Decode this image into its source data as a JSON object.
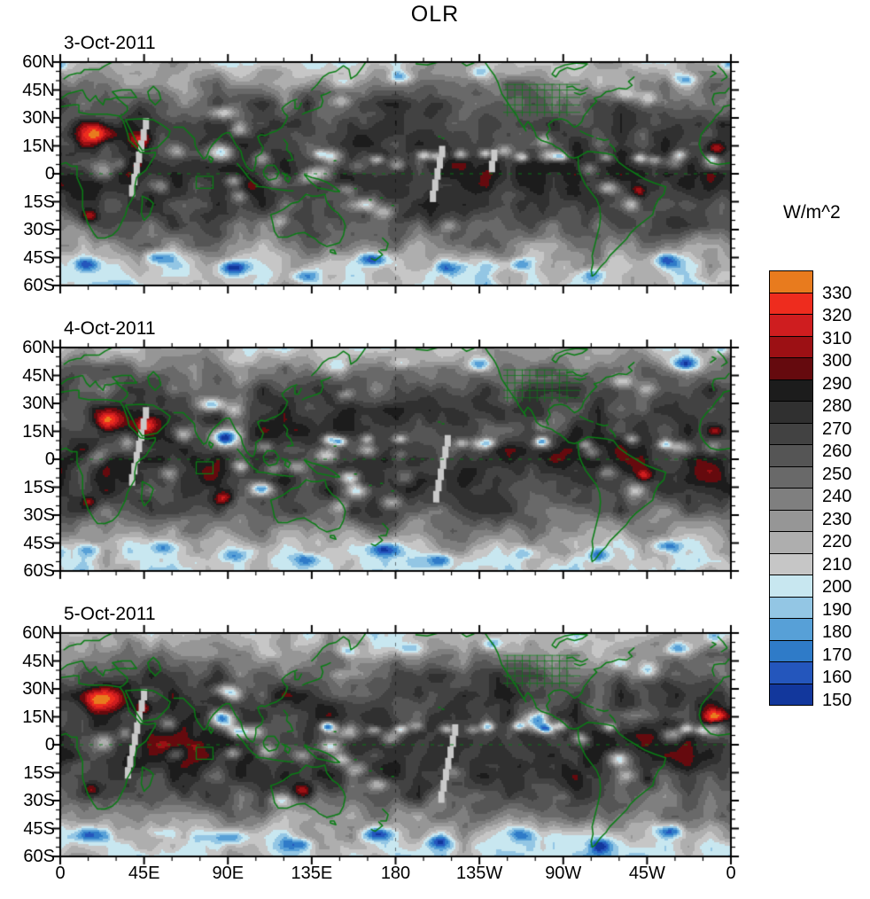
{
  "title": "OLR",
  "panels": [
    {
      "date_label": "3-Oct-2011"
    },
    {
      "date_label": "4-Oct-2011"
    },
    {
      "date_label": "5-Oct-2011"
    }
  ],
  "y_axis_ticks": [
    "60N",
    "45N",
    "30N",
    "15N",
    "0",
    "15S",
    "30S",
    "45S",
    "60S"
  ],
  "x_axis_ticks": [
    "0",
    "45E",
    "90E",
    "135E",
    "180",
    "135W",
    "90W",
    "45W",
    "0"
  ],
  "colorbar": {
    "unit_label": "W/m^2",
    "tick_labels": [
      "330",
      "320",
      "310",
      "300",
      "290",
      "280",
      "270",
      "260",
      "250",
      "240",
      "230",
      "220",
      "210",
      "200",
      "190",
      "180",
      "170",
      "160",
      "150"
    ],
    "colors_top_to_bottom": [
      "#e87b1e",
      "#ee2c1e",
      "#cf1d1f",
      "#9c1014",
      "#650a0e",
      "#1c1c1c",
      "#303030",
      "#424242",
      "#555555",
      "#696969",
      "#7f7f7f",
      "#969696",
      "#aeaeae",
      "#c6c6c6",
      "#c8e7f0",
      "#93c6e4",
      "#57a0d7",
      "#2f7bc8",
      "#2456bc",
      "#12379c"
    ]
  },
  "map_colors": {
    "coastline_green": "#0a7d15",
    "missing_data_gray": "#c9c9c9",
    "frame_black": "#000000"
  },
  "chart_data": {
    "type": "heatmap",
    "title": "OLR",
    "units": "W/m^2",
    "panels": [
      "3-Oct-2011",
      "4-Oct-2011",
      "5-Oct-2011"
    ],
    "projection": "global equirectangular, longitude 0 eastward through 180 back to 0, latitude 60N to 60S",
    "lon_tick_labels": [
      "0",
      "45E",
      "90E",
      "135E",
      "180",
      "135W",
      "90W",
      "45W",
      "0"
    ],
    "lat_tick_labels": [
      "60N",
      "45N",
      "30N",
      "15N",
      "0",
      "15S",
      "30S",
      "45S",
      "60S"
    ],
    "contour_levels_w_m2": [
      150,
      160,
      170,
      180,
      190,
      200,
      210,
      220,
      230,
      240,
      250,
      260,
      270,
      280,
      290,
      300,
      310,
      320,
      330
    ],
    "colorbar_colors_low_to_high": [
      "#12379c",
      "#2456bc",
      "#2f7bc8",
      "#57a0d7",
      "#93c6e4",
      "#c8e7f0",
      "#c6c6c6",
      "#aeaeae",
      "#969696",
      "#7f7f7f",
      "#696969",
      "#555555",
      "#424242",
      "#303030",
      "#1c1c1c",
      "#650a0e",
      "#9c1014",
      "#cf1d1f",
      "#ee2c1e",
      "#e87b1e"
    ],
    "legend_position": "right",
    "features": [
      "Grayscale shading (200-290 W/m^2) covers most of the globe, darkest along the deep tropics",
      "Blue areas (OLR below 200 W/m^2) mark deep convection: tropical Indian Ocean, Bay of Bengal, Maritime Continent, SPCZ, Pacific ITCZ, Amazon/Colombia, Congo, and midlatitude storm tracks",
      "Red/orange areas (OLR above 290 W/m^2) over the Sahara, Arabian Peninsula, Sahel/West Africa, Kalahari, and (5-Oct) Australian interior",
      "Green overlays: coastlines, US state boundaries, dashed equator and dateline, and a small rectangle over the tropical Indian Ocean near 73-82E, 1-8S",
      "Light-gray stepped swaths of missing satellite data near 45E and near the dateline in each panel"
    ]
  }
}
